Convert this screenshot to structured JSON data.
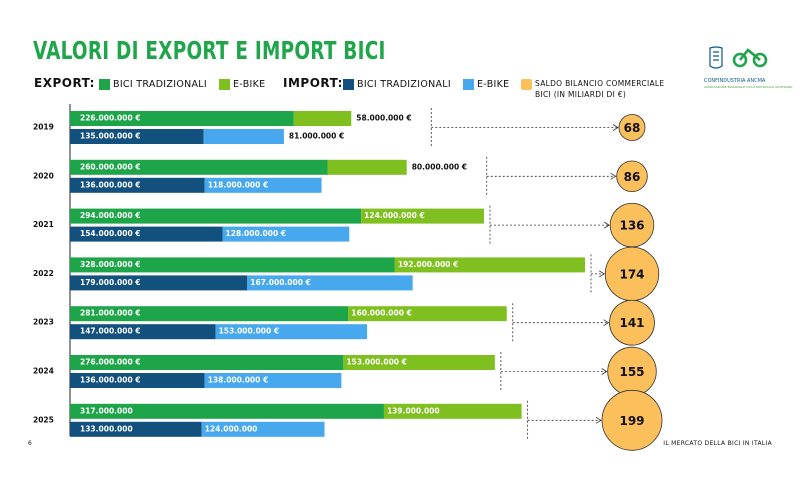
{
  "header": {
    "title": "VALORI DI EXPORT E IMPORT BICI",
    "logo_text": "CONFINDUSTRIA ANCMA",
    "logo_subtext": "ASSOCIAZIONE NAZIONALE CICLO MOTOCICLO ACCESSORI"
  },
  "legend": {
    "export_label": "EXPORT:",
    "export_trad": "BICI TRADIZIONALI",
    "export_ebike": "E-BIKE",
    "import_label": "IMPORT:",
    "import_trad": "BICI TRADIZIONALI",
    "import_ebike": "E-BIKE",
    "saldo_line1": "SALDO BILANCIO COMMERCIALE",
    "saldo_line2": "BICI (IN MILIARDI DI €)"
  },
  "colors": {
    "export_trad": "#1ea54a",
    "export_ebike": "#7fbf1f",
    "import_trad": "#12507e",
    "import_ebike": "#47a8ee",
    "saldo": "#fbbf5b"
  },
  "footer": {
    "page_number": "6",
    "right_text": "IL MERCATO DELLA BICI IN ITALIA"
  },
  "chart_data": {
    "type": "bar",
    "orientation": "horizontal",
    "stacked": true,
    "categories": [
      "2019",
      "2020",
      "2021",
      "2022",
      "2023",
      "2024",
      "2025"
    ],
    "series": [
      {
        "name": "BICI TRADIZIONALI",
        "group": "EXPORT",
        "values": [
          226000000,
          260000000,
          294000000,
          328000000,
          281000000,
          276000000,
          317000000
        ],
        "labels": [
          "226.000.000 €",
          "260.000.000 €",
          "294.000.000 €",
          "328.000.000 €",
          "281.000.000 €",
          "276.000.000 €",
          "317.000.000"
        ]
      },
      {
        "name": "E-BIKE",
        "group": "EXPORT",
        "values": [
          58000000,
          80000000,
          124000000,
          192000000,
          160000000,
          153000000,
          139000000
        ],
        "labels": [
          "58.000.000 €",
          "80.000.000 €",
          "124.000.000 €",
          "192.000.000 €",
          "160.000.000 €",
          "153.000.000 €",
          "139.000.000"
        ]
      },
      {
        "name": "BICI TRADIZIONALI",
        "group": "IMPORT",
        "values": [
          135000000,
          136000000,
          154000000,
          179000000,
          147000000,
          136000000,
          133000000
        ],
        "labels": [
          "135.000.000 €",
          "136.000.000 €",
          "154.000.000 €",
          "179.000.000 €",
          "147.000.000 €",
          "136.000.000 €",
          "133.000.000"
        ]
      },
      {
        "name": "E-BIKE",
        "group": "IMPORT",
        "values": [
          81000000,
          118000000,
          128000000,
          167000000,
          153000000,
          138000000,
          124000000
        ],
        "labels": [
          "81.000.000 €",
          "118.000.000 €",
          "128.000.000 €",
          "167.000.000 €",
          "153.000.000 €",
          "138.000.000 €",
          "124.000.000"
        ]
      }
    ],
    "saldo": {
      "name": "SALDO BILANCIO COMMERCIALE BICI (IN MILIARDI DI €)",
      "values": [
        68,
        86,
        136,
        174,
        141,
        155,
        199
      ]
    },
    "xlim": [
      0,
      520000000
    ]
  }
}
